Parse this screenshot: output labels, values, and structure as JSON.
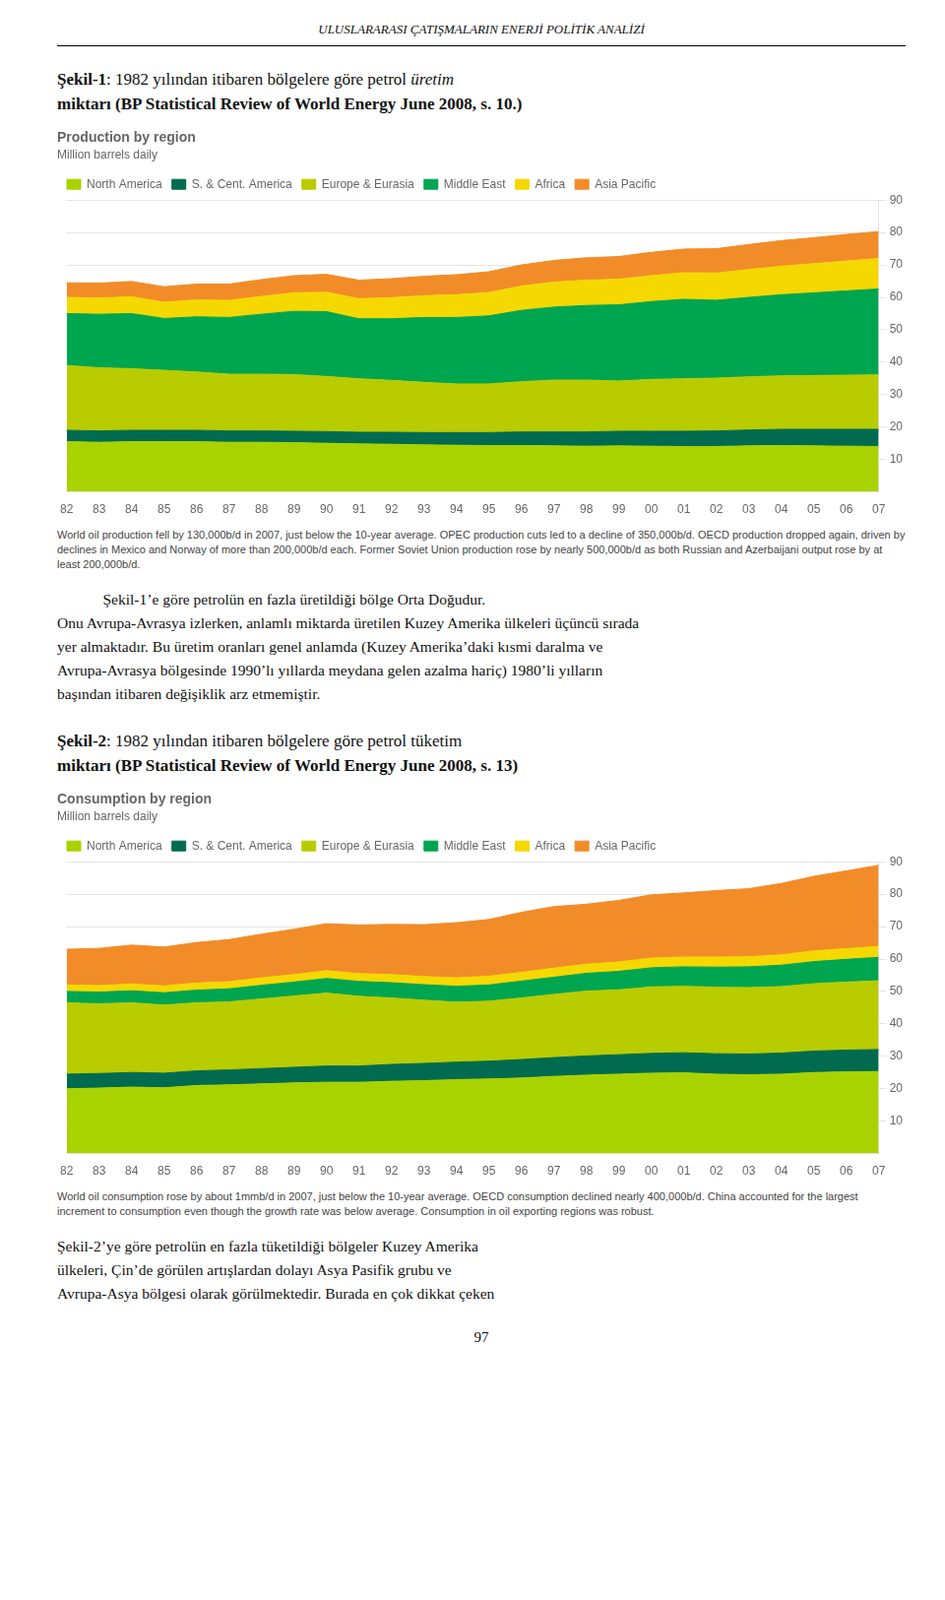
{
  "page_title": "ULUSLARARASI ÇATIŞMALARIN ENERJİ POLİTİK ANALİZİ",
  "page_number": "97",
  "chart_data": [
    {
      "type": "area",
      "stacked": true,
      "grid": true,
      "legend": "upper left",
      "caption": [
        [
          "Şekil-1",
          ": 1982 yılından itibaren bölgelere göre petrol ",
          "üretim"
        ],
        [
          "miktarı (BP Statistical Review of World Energy June 2008, s. 10.)"
        ]
      ],
      "title": "Production by region",
      "subtitle": "Million barrels daily",
      "footnote": "World oil production fell by 130,000b/d in 2007, just below the 10-year average. OPEC production cuts led to a decline of 350,000b/d. OECD production dropped again, driven by declines in Mexico and Norway of more than 200,000b/d each. Former Soviet Union production rose by nearly 500,000b/d as both Russian and Azerbaijani output rose by at least 200,000b/d.",
      "paragraph": [
        "Şekil-1’e göre petrolün en fazla üretildiği bölge Orta Doğudur.",
        "Onu Avrupa-Avrasya izlerken, anlamlı miktarda üretilen Kuzey Amerika ülkeleri üçüncü sırada",
        "yer almaktadır. Bu üretim oranları genel anlamda (Kuzey Amerika’daki kısmi daralma ve",
        "Avrupa-Avrasya bölgesinde 1990’lı yıllarda meydana gelen azalma hariç) 1980’li yılların",
        "başından itibaren değişiklik arz etmemiştir."
      ],
      "categories": [
        "82",
        "83",
        "84",
        "85",
        "86",
        "87",
        "88",
        "89",
        "90",
        "91",
        "92",
        "93",
        "94",
        "95",
        "96",
        "97",
        "98",
        "99",
        "00",
        "01",
        "02",
        "03",
        "04",
        "05",
        "06",
        "07"
      ],
      "series": [
        {
          "name": "North America",
          "color": "#A8D200",
          "values": [
            15.5,
            15.3,
            15.5,
            15.5,
            15.5,
            15.3,
            15.3,
            15.2,
            15.0,
            14.8,
            14.7,
            14.5,
            14.4,
            14.3,
            14.3,
            14.2,
            14.1,
            14.2,
            14.1,
            14.0,
            14.0,
            14.2,
            14.3,
            14.2,
            14.1,
            14.0
          ]
        },
        {
          "name": "S. & Cent. America",
          "color": "#006B4F",
          "values": [
            3.5,
            3.5,
            3.5,
            3.5,
            3.5,
            3.5,
            3.5,
            3.5,
            3.6,
            3.6,
            3.7,
            3.8,
            3.9,
            4.0,
            4.2,
            4.3,
            4.4,
            4.5,
            4.6,
            4.7,
            4.8,
            4.9,
            5.0,
            5.1,
            5.2,
            5.3
          ]
        },
        {
          "name": "Europe & Eurasia",
          "color": "#B8CC00",
          "values": [
            20.0,
            19.5,
            19.0,
            18.5,
            18.0,
            17.5,
            17.5,
            17.5,
            17.0,
            16.5,
            16.0,
            15.5,
            15.0,
            15.0,
            15.5,
            16.0,
            16.0,
            15.5,
            16.0,
            16.2,
            16.3,
            16.4,
            16.5,
            16.6,
            16.7,
            16.8
          ]
        },
        {
          "name": "Middle East",
          "color": "#00A550",
          "values": [
            16.0,
            16.5,
            17.0,
            16.0,
            17.0,
            17.5,
            18.5,
            19.5,
            20.0,
            18.5,
            19.0,
            20.0,
            20.5,
            21.0,
            22.0,
            22.5,
            23.0,
            23.5,
            24.0,
            24.5,
            24.0,
            24.5,
            25.0,
            25.5,
            26.0,
            26.5
          ]
        },
        {
          "name": "Africa",
          "color": "#F5D800",
          "values": [
            5.0,
            5.0,
            5.2,
            5.0,
            5.2,
            5.3,
            5.5,
            5.7,
            6.0,
            6.2,
            6.5,
            6.7,
            7.0,
            7.2,
            7.5,
            7.7,
            7.8,
            7.9,
            8.0,
            8.2,
            8.4,
            8.6,
            8.8,
            9.0,
            9.2,
            9.4
          ]
        },
        {
          "name": "Asia Pacific",
          "color": "#F28C28",
          "values": [
            4.5,
            4.6,
            4.7,
            4.8,
            4.9,
            5.0,
            5.2,
            5.3,
            5.5,
            5.7,
            5.9,
            6.0,
            6.2,
            6.4,
            6.5,
            6.7,
            6.9,
            7.0,
            7.2,
            7.3,
            7.5,
            7.7,
            7.9,
            8.0,
            8.2,
            8.3
          ]
        }
      ],
      "ylim": [
        0,
        90
      ],
      "yticks": [
        10,
        20,
        30,
        40,
        50,
        60,
        70,
        80,
        90
      ]
    },
    {
      "type": "area",
      "stacked": true,
      "grid": true,
      "legend": "upper left",
      "caption": [
        [
          "Şekil-2",
          ": 1982 yılından itibaren bölgelere göre petrol tüketim"
        ],
        [
          "miktarı (BP Statistical Review of World Energy June 2008, s. 13)"
        ]
      ],
      "title": "Consumption by region",
      "subtitle": "Million barrels daily",
      "footnote": "World oil consumption rose by about 1mmb/d in 2007, just below the 10-year average. OECD consumption declined nearly 400,000b/d. China accounted for the largest increment to consumption even though the growth rate was below average. Consumption in oil exporting regions was robust.",
      "paragraph": [
        "Şekil-2’ye göre petrolün en fazla tüketildiği bölgeler Kuzey Amerika",
        "ülkeleri, Çin’de görülen artışlardan dolayı Asya Pasifik grubu ve",
        "Avrupa-Asya bölgesi olarak görülmektedir. Burada en çok dikkat çeken"
      ],
      "categories": [
        "82",
        "83",
        "84",
        "85",
        "86",
        "87",
        "88",
        "89",
        "90",
        "91",
        "92",
        "93",
        "94",
        "95",
        "96",
        "97",
        "98",
        "99",
        "00",
        "01",
        "02",
        "03",
        "04",
        "05",
        "06",
        "07"
      ],
      "series": [
        {
          "name": "North America",
          "color": "#A8D200",
          "values": [
            20.0,
            20.2,
            20.5,
            20.3,
            21.0,
            21.2,
            21.5,
            21.8,
            22.0,
            22.0,
            22.3,
            22.5,
            22.8,
            23.0,
            23.3,
            23.8,
            24.2,
            24.5,
            24.8,
            24.9,
            24.5,
            24.3,
            24.5,
            25.0,
            25.2,
            25.3
          ]
        },
        {
          "name": "S. & Cent. America",
          "color": "#006B4F",
          "values": [
            4.5,
            4.5,
            4.5,
            4.5,
            4.5,
            4.6,
            4.7,
            4.8,
            5.0,
            5.0,
            5.2,
            5.3,
            5.4,
            5.5,
            5.7,
            5.8,
            5.9,
            6.0,
            6.1,
            6.2,
            6.3,
            6.4,
            6.5,
            6.6,
            6.7,
            6.8
          ]
        },
        {
          "name": "Europe & Eurasia",
          "color": "#B8CC00",
          "values": [
            22.0,
            21.5,
            21.5,
            21.0,
            21.0,
            21.0,
            21.5,
            22.0,
            22.5,
            21.5,
            20.5,
            19.5,
            18.5,
            18.5,
            19.0,
            19.5,
            20.0,
            20.0,
            20.5,
            20.5,
            20.5,
            20.5,
            20.5,
            20.8,
            21.0,
            21.2
          ]
        },
        {
          "name": "Middle East",
          "color": "#00A550",
          "values": [
            3.5,
            3.6,
            3.7,
            3.8,
            3.9,
            4.0,
            4.2,
            4.3,
            4.5,
            4.6,
            4.7,
            4.8,
            4.9,
            5.0,
            5.2,
            5.3,
            5.5,
            5.7,
            5.9,
            6.0,
            6.2,
            6.4,
            6.6,
            6.8,
            7.0,
            7.2
          ]
        },
        {
          "name": "Africa",
          "color": "#F5D800",
          "values": [
            2.0,
            2.0,
            2.1,
            2.1,
            2.2,
            2.2,
            2.3,
            2.3,
            2.4,
            2.4,
            2.5,
            2.5,
            2.6,
            2.7,
            2.7,
            2.8,
            2.8,
            2.9,
            3.0,
            3.0,
            3.1,
            3.1,
            3.2,
            3.3,
            3.3,
            3.4
          ]
        },
        {
          "name": "Asia Pacific",
          "color": "#F28C28",
          "values": [
            11.0,
            11.5,
            12.0,
            12.0,
            12.5,
            13.0,
            13.5,
            14.0,
            14.5,
            15.0,
            15.5,
            16.0,
            17.0,
            17.5,
            18.5,
            19.0,
            18.5,
            19.0,
            19.5,
            19.8,
            20.5,
            21.0,
            22.0,
            23.0,
            24.0,
            25.0
          ]
        }
      ],
      "ylim": [
        0,
        90
      ],
      "yticks": [
        10,
        20,
        30,
        40,
        50,
        60,
        70,
        80,
        90
      ]
    }
  ]
}
